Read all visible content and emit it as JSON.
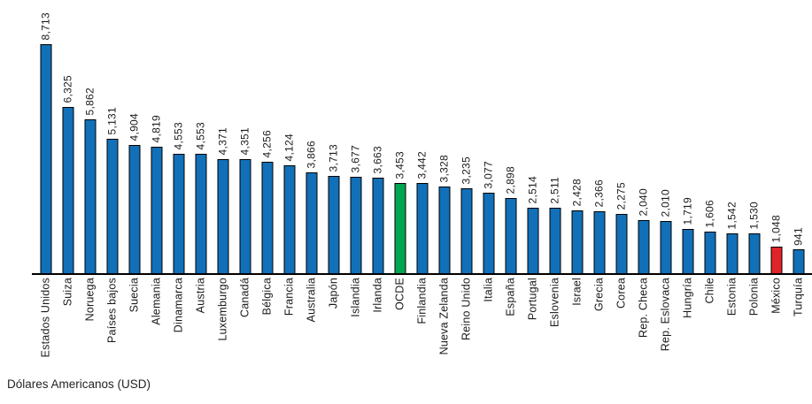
{
  "chart_data": {
    "type": "bar",
    "title": "",
    "xlabel": "",
    "ylabel": "",
    "caption": "Dólares Americanos (USD)",
    "ylim": [
      0,
      8713
    ],
    "grid": false,
    "legend": "none",
    "orientation": "vertical",
    "label_rotation": "90deg-bottom-to-top",
    "palette": {
      "blue": "#1170b8",
      "green": "#00a551",
      "red": "#e1242a",
      "bar_outline": "#000000",
      "text": "#1a1a1a"
    },
    "categories": [
      "Estados Unidos",
      "Suiza",
      "Noruega",
      "Países bajos",
      "Suecia",
      "Alemania",
      "Dinamarca",
      "Austria",
      "Luxemburgo",
      "Canadá",
      "Bélgica",
      "Francia",
      "Australia",
      "Japón",
      "Islandia",
      "Irlanda",
      "OCDE",
      "Finlandia",
      "Nueva Zelanda",
      "Reino Unido",
      "Italia",
      "España",
      "Portugal",
      "Eslovenia",
      "Israel",
      "Grecia",
      "Corea",
      "Rep. Checa",
      "Rep. Eslovaca",
      "Hungría",
      "Chile",
      "Estonia",
      "Polonia",
      "México",
      "Turquía"
    ],
    "values": [
      8713,
      6325,
      5862,
      5131,
      4904,
      4819,
      4553,
      4553,
      4371,
      4351,
      4256,
      4124,
      3866,
      3713,
      3677,
      3663,
      3453,
      3442,
      3328,
      3235,
      3077,
      2898,
      2514,
      2511,
      2428,
      2366,
      2275,
      2040,
      2010,
      1719,
      1606,
      1542,
      1530,
      1048,
      941
    ],
    "bars": [
      {
        "category": "Estados Unidos",
        "value": 8713,
        "label": "8,713",
        "color": "blue"
      },
      {
        "category": "Suiza",
        "value": 6325,
        "label": "6,325",
        "color": "blue"
      },
      {
        "category": "Noruega",
        "value": 5862,
        "label": "5,862",
        "color": "blue"
      },
      {
        "category": "Países bajos",
        "value": 5131,
        "label": "5,131",
        "color": "blue"
      },
      {
        "category": "Suecia",
        "value": 4904,
        "label": "4,904",
        "color": "blue"
      },
      {
        "category": "Alemania",
        "value": 4819,
        "label": "4,819",
        "color": "blue"
      },
      {
        "category": "Dinamarca",
        "value": 4553,
        "label": "4,553",
        "color": "blue"
      },
      {
        "category": "Austria",
        "value": 4553,
        "label": "4,553",
        "color": "blue"
      },
      {
        "category": "Luxemburgo",
        "value": 4371,
        "label": "4,371",
        "color": "blue"
      },
      {
        "category": "Canadá",
        "value": 4351,
        "label": "4,351",
        "color": "blue"
      },
      {
        "category": "Bélgica",
        "value": 4256,
        "label": "4,256",
        "color": "blue"
      },
      {
        "category": "Francia",
        "value": 4124,
        "label": "4,124",
        "color": "blue"
      },
      {
        "category": "Australia",
        "value": 3866,
        "label": "3,866",
        "color": "blue"
      },
      {
        "category": "Japón",
        "value": 3713,
        "label": "3,713",
        "color": "blue"
      },
      {
        "category": "Islandia",
        "value": 3677,
        "label": "3,677",
        "color": "blue"
      },
      {
        "category": "Irlanda",
        "value": 3663,
        "label": "3,663",
        "color": "blue"
      },
      {
        "category": "OCDE",
        "value": 3453,
        "label": "3,453",
        "color": "green"
      },
      {
        "category": "Finlandia",
        "value": 3442,
        "label": "3,442",
        "color": "blue"
      },
      {
        "category": "Nueva Zelanda",
        "value": 3328,
        "label": "3,328",
        "color": "blue"
      },
      {
        "category": "Reino Unido",
        "value": 3235,
        "label": "3,235",
        "color": "blue"
      },
      {
        "category": "Italia",
        "value": 3077,
        "label": "3,077",
        "color": "blue"
      },
      {
        "category": "España",
        "value": 2898,
        "label": "2,898",
        "color": "blue"
      },
      {
        "category": "Portugal",
        "value": 2514,
        "label": "2,514",
        "color": "blue"
      },
      {
        "category": "Eslovenia",
        "value": 2511,
        "label": "2,511",
        "color": "blue"
      },
      {
        "category": "Israel",
        "value": 2428,
        "label": "2,428",
        "color": "blue"
      },
      {
        "category": "Grecia",
        "value": 2366,
        "label": "2,366",
        "color": "blue"
      },
      {
        "category": "Corea",
        "value": 2275,
        "label": "2,275",
        "color": "blue"
      },
      {
        "category": "Rep. Checa",
        "value": 2040,
        "label": "2,040",
        "color": "blue"
      },
      {
        "category": "Rep. Eslovaca",
        "value": 2010,
        "label": "2,010",
        "color": "blue"
      },
      {
        "category": "Hungría",
        "value": 1719,
        "label": "1,719",
        "color": "blue"
      },
      {
        "category": "Chile",
        "value": 1606,
        "label": "1,606",
        "color": "blue"
      },
      {
        "category": "Estonia",
        "value": 1542,
        "label": "1,542",
        "color": "blue"
      },
      {
        "category": "Polonia",
        "value": 1530,
        "label": "1,530",
        "color": "blue"
      },
      {
        "category": "México",
        "value": 1048,
        "label": "1,048",
        "color": "red"
      },
      {
        "category": "Turquía",
        "value": 941,
        "label": "941",
        "color": "blue"
      }
    ]
  },
  "footer": {
    "caption": "Dólares Americanos (USD)"
  }
}
